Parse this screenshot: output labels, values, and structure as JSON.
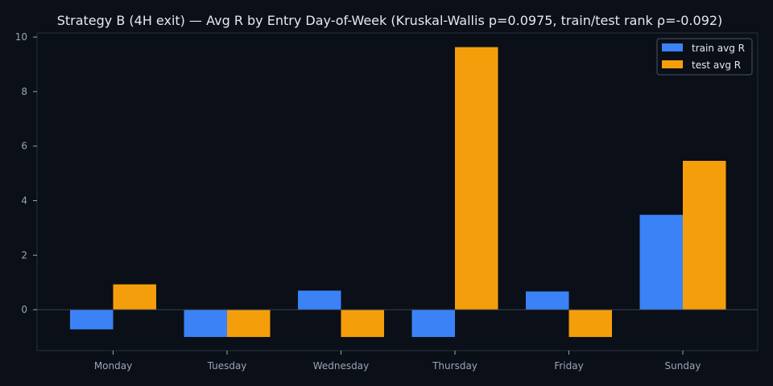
{
  "chart_data": {
    "type": "bar",
    "title": "Strategy B (4H exit) — Avg R by Entry Day-of-Week (Kruskal-Wallis p=0.0975, train/test rank ρ=-0.092)",
    "xlabel": "",
    "ylabel": "",
    "categories": [
      "Monday",
      "Tuesday",
      "Wednesday",
      "Thursday",
      "Friday",
      "Sunday"
    ],
    "series": [
      {
        "name": "train avg R",
        "color": "#3b82f6",
        "values": [
          -0.72,
          -1.0,
          0.7,
          -1.0,
          0.67,
          3.48
        ]
      },
      {
        "name": "test avg R",
        "color": "#f59e0b",
        "values": [
          0.93,
          -1.0,
          -1.0,
          9.63,
          -1.0,
          5.46
        ]
      }
    ],
    "ylim": [
      -1.5,
      10.15
    ],
    "yticks": [
      0,
      2,
      4,
      6,
      8,
      10
    ],
    "grid": false,
    "zero_line": true,
    "legend": "top-right",
    "colors": {
      "background": "#0b0f17",
      "axes_border": "#263042",
      "tick_label": "#9aa4b8",
      "title": "#e6e8ee",
      "zero_line": "#3a4456"
    }
  }
}
